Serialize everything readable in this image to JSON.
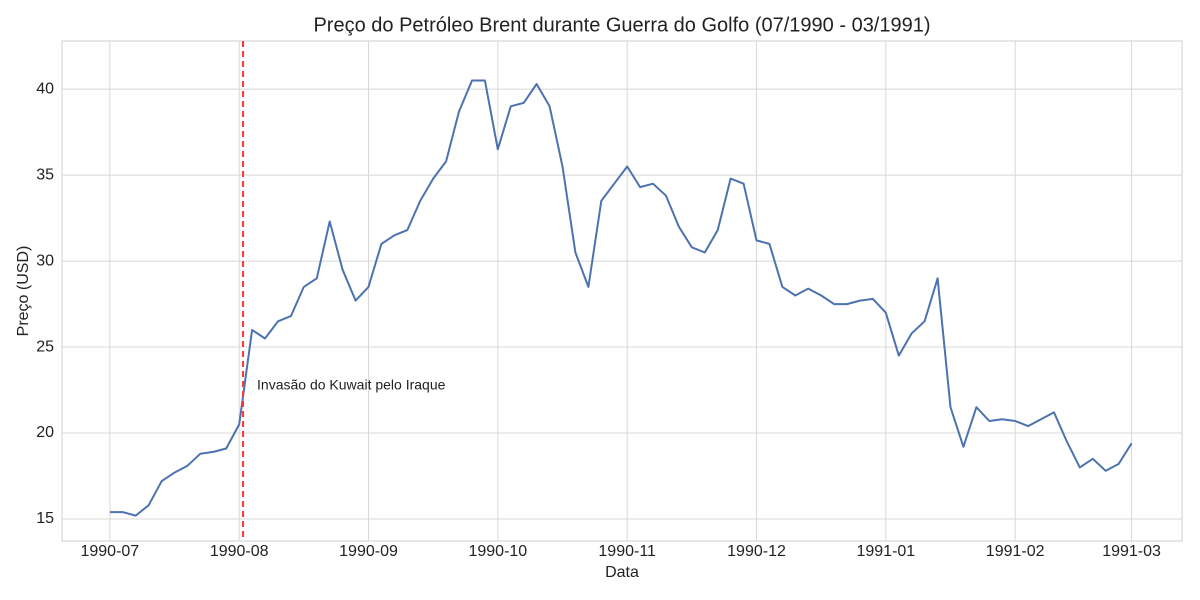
{
  "chart_data": {
    "type": "line",
    "title": "Preço do Petróleo Brent durante Guerra do Golfo (07/1990 - 03/1991)",
    "x_label": "Data",
    "y_label": "Preço (USD)",
    "categories": [
      "1990-07",
      null,
      null,
      null,
      null,
      null,
      null,
      null,
      null,
      null,
      "1990-08",
      null,
      null,
      null,
      null,
      null,
      null,
      null,
      null,
      null,
      "1990-09",
      null,
      null,
      null,
      null,
      null,
      null,
      null,
      null,
      null,
      "1990-10",
      null,
      null,
      null,
      null,
      null,
      null,
      null,
      null,
      null,
      "1990-11",
      null,
      null,
      null,
      null,
      null,
      null,
      null,
      null,
      null,
      "1990-12",
      null,
      null,
      null,
      null,
      null,
      null,
      null,
      null,
      null,
      "1991-01",
      null,
      null,
      null,
      null,
      null,
      null,
      null,
      null,
      null,
      "1991-02",
      null,
      null,
      null,
      null,
      null,
      null,
      null,
      null,
      "1991-03"
    ],
    "values": [
      15.4,
      15.4,
      15.2,
      15.8,
      17.2,
      17.7,
      18.1,
      18.8,
      18.9,
      19.1,
      20.5,
      26.0,
      25.5,
      26.5,
      26.8,
      28.5,
      29.0,
      32.3,
      29.5,
      27.7,
      28.5,
      31.0,
      31.5,
      31.8,
      33.5,
      34.8,
      35.8,
      38.7,
      40.5,
      40.5,
      36.5,
      39.0,
      39.2,
      40.3,
      39.0,
      35.5,
      30.5,
      28.5,
      33.5,
      34.5,
      35.5,
      34.3,
      34.5,
      33.8,
      32.0,
      30.8,
      30.5,
      31.8,
      34.8,
      34.5,
      31.2,
      31.0,
      28.5,
      28.0,
      28.4,
      28.0,
      27.5,
      27.5,
      27.7,
      27.8,
      27.0,
      24.5,
      25.8,
      26.5,
      29.0,
      21.5,
      19.2,
      21.5,
      20.7,
      20.8,
      20.7,
      20.4,
      20.8,
      21.2,
      19.5,
      18.0,
      18.5,
      17.8,
      18.2,
      19.4
    ],
    "color": "#4c72b0",
    "xlim": [
      -3.7,
      82.9
    ],
    "ylim": [
      13.72,
      42.8
    ],
    "yticks": [
      15,
      20,
      25,
      30,
      35,
      40
    ],
    "grid": true,
    "vline": {
      "x": 10.3,
      "color": "#ff3333",
      "label": "Invasão do Kuwait pelo Iraque"
    }
  }
}
